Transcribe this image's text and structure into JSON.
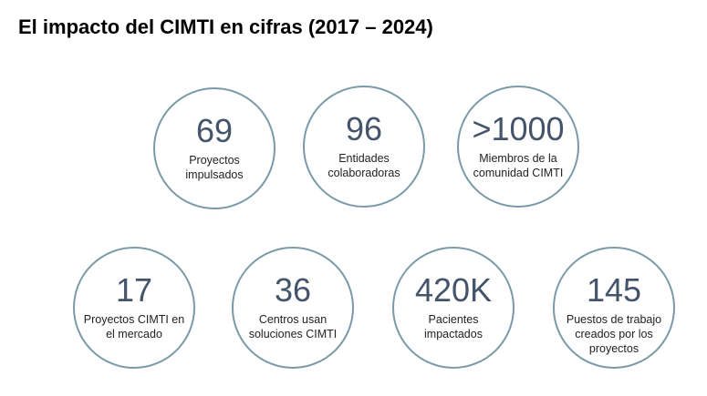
{
  "title": "El impacto del CIMTI en cifras (2017 – 2024)",
  "accent_color": "#7b9aa8",
  "number_color": "#44546a",
  "stats": [
    {
      "value": "69",
      "label": "Proyectos\nimpulsados"
    },
    {
      "value": "96",
      "label": "Entidades\ncolaboradoras"
    },
    {
      "value": ">1000",
      "label": "Miembros de la\ncomunidad CIMTI"
    },
    {
      "value": "17",
      "label": "Proyectos CIMTI en\nel mercado"
    },
    {
      "value": "36",
      "label": "Centros usan\nsoluciones CIMTI"
    },
    {
      "value": "420K",
      "label": "Pacientes\nimpactados"
    },
    {
      "value": "145",
      "label": "Puestos de trabajo\ncreados por los\nproyectos"
    }
  ]
}
